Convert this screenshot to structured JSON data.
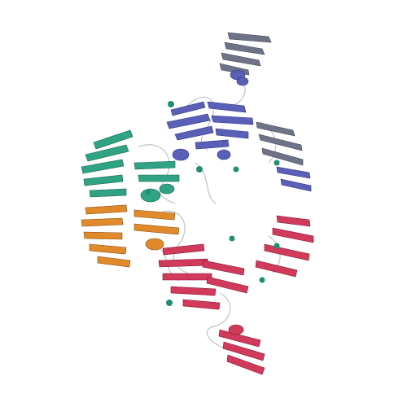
{
  "colors": {
    "background": "#ffffff",
    "blue_chain": "#5a5fb8",
    "slate_chain": "#6f7388",
    "teal_chain": "#2fa384",
    "orange_chain": "#e08a2c",
    "red_chain": "#d23a5c",
    "coil": "#b9bcc6",
    "ion": "#1f8f73"
  },
  "molecule": {
    "style": "ribbon-cartoon",
    "chains": [
      {
        "name": "blue-upper",
        "color_key": "blue_chain"
      },
      {
        "name": "slate-top-and-right",
        "color_key": "slate_chain"
      },
      {
        "name": "teal-left",
        "color_key": "teal_chain"
      },
      {
        "name": "orange-left",
        "color_key": "orange_chain"
      },
      {
        "name": "red-lower",
        "color_key": "red_chain"
      }
    ]
  }
}
